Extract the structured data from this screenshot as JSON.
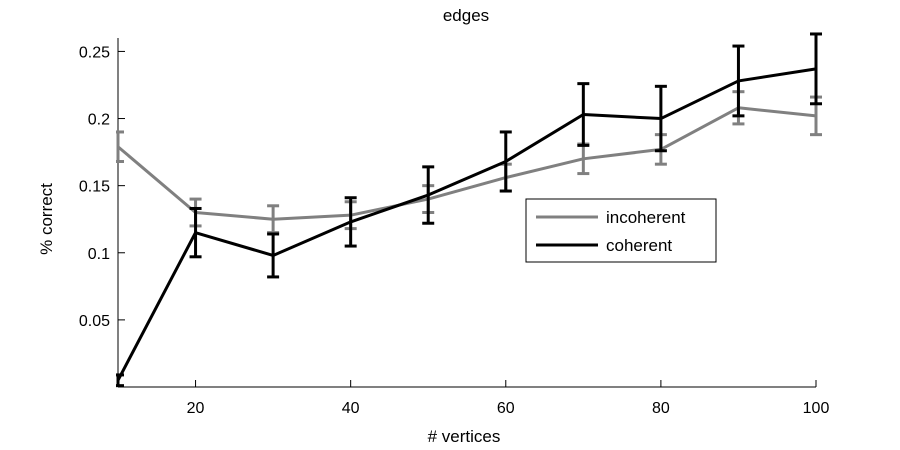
{
  "chart_data": {
    "type": "line",
    "title": "edges",
    "xlabel": "# vertices",
    "ylabel": "% correct",
    "xlim": [
      10,
      100
    ],
    "ylim": [
      0.0,
      0.26
    ],
    "xticks": [
      20,
      40,
      60,
      80,
      100
    ],
    "xtick_labels": [
      "20",
      "40",
      "60",
      "80",
      "100"
    ],
    "yticks": [
      0.05,
      0.1,
      0.15,
      0.2,
      0.25
    ],
    "ytick_labels": [
      "0.05",
      "0.1",
      "0.15",
      "0.2",
      "0.25"
    ],
    "grid": false,
    "legend_position": "center-right",
    "x": [
      10,
      20,
      30,
      40,
      50,
      60,
      70,
      80,
      90,
      100
    ],
    "series": [
      {
        "name": "incoherent",
        "color": "#808080",
        "values": [
          0.179,
          0.13,
          0.125,
          0.128,
          0.14,
          0.156,
          0.17,
          0.177,
          0.208,
          0.202
        ],
        "error": [
          0.011,
          0.01,
          0.01,
          0.01,
          0.01,
          0.01,
          0.011,
          0.011,
          0.012,
          0.014
        ]
      },
      {
        "name": "coherent",
        "color": "#000000",
        "values": [
          0.005,
          0.115,
          0.098,
          0.123,
          0.143,
          0.168,
          0.203,
          0.2,
          0.228,
          0.237
        ],
        "error": [
          0.004,
          0.018,
          0.016,
          0.018,
          0.021,
          0.022,
          0.023,
          0.024,
          0.026,
          0.026
        ]
      }
    ]
  }
}
